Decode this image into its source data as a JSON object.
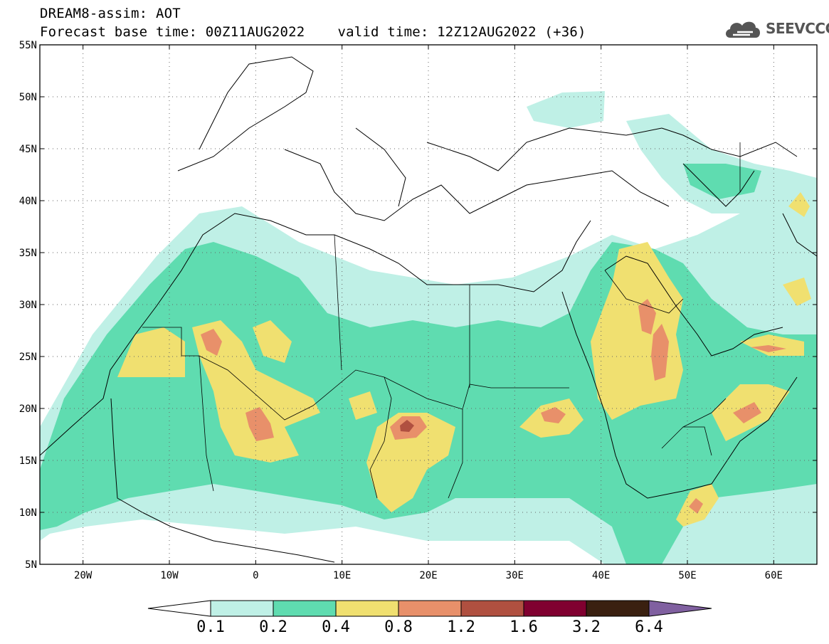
{
  "title": {
    "line1": "DREAM8-assim: AOT",
    "line2_base": "Forecast base time: 00Z11AUG2022",
    "line2_valid": "valid time: 12Z12AUG2022 (+36)"
  },
  "logo": {
    "text": "SEEVCCC",
    "icon": "cloud-icon"
  },
  "map": {
    "lon_range": [
      -25,
      65
    ],
    "lat_range": [
      5,
      55
    ],
    "lat_ticks": [
      {
        "value": 55,
        "label": "55N"
      },
      {
        "value": 50,
        "label": "50N"
      },
      {
        "value": 45,
        "label": "45N"
      },
      {
        "value": 40,
        "label": "40N"
      },
      {
        "value": 35,
        "label": "35N"
      },
      {
        "value": 30,
        "label": "30N"
      },
      {
        "value": 25,
        "label": "25N"
      },
      {
        "value": 20,
        "label": "20N"
      },
      {
        "value": 15,
        "label": "15N"
      },
      {
        "value": 10,
        "label": "10N"
      },
      {
        "value": 5,
        "label": "5N"
      }
    ],
    "lon_ticks": [
      {
        "value": -20,
        "label": "20W"
      },
      {
        "value": -10,
        "label": "10W"
      },
      {
        "value": 0,
        "label": "0"
      },
      {
        "value": 10,
        "label": "10E"
      },
      {
        "value": 20,
        "label": "20E"
      },
      {
        "value": 30,
        "label": "30E"
      },
      {
        "value": 40,
        "label": "40E"
      },
      {
        "value": 50,
        "label": "50E"
      },
      {
        "value": 60,
        "label": "60E"
      }
    ]
  },
  "colorbar": {
    "levels": [
      "0.1",
      "0.2",
      "0.4",
      "0.8",
      "1.2",
      "1.6",
      "3.2",
      "6.4"
    ],
    "colors": [
      "#ffffff",
      "#bff0e6",
      "#5fdcb0",
      "#f0e070",
      "#e8906a",
      "#b05040",
      "#800030",
      "#3a2010",
      "#8060a0"
    ]
  }
}
